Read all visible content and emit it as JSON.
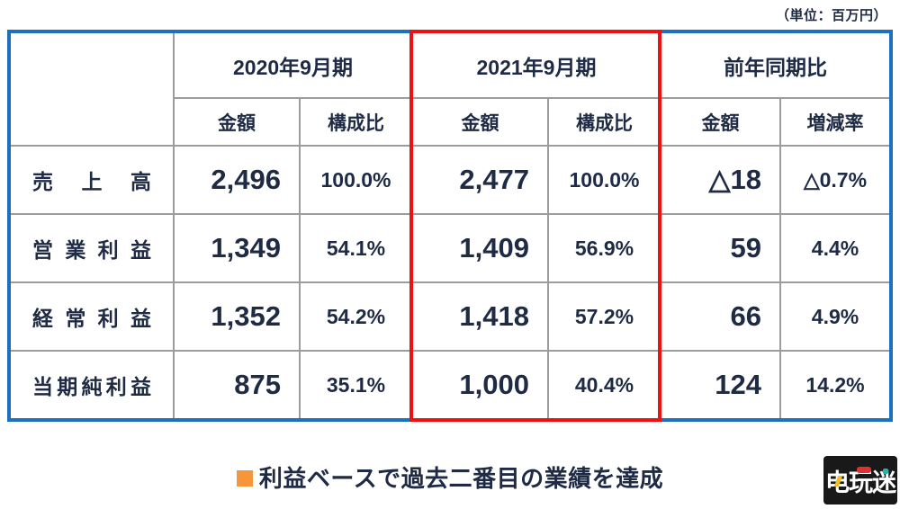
{
  "unit_note": "（単位：百万円）",
  "table": {
    "groups": [
      {
        "label": "2020年9月期"
      },
      {
        "label": "2021年9月期",
        "highlighted": true
      },
      {
        "label": "前年同期比"
      }
    ],
    "subheaders": [
      "金額",
      "構成比",
      "金額",
      "構成比",
      "金額",
      "増減率"
    ],
    "rows": [
      {
        "label": "売上高",
        "fy2020_amount": "2,496",
        "fy2020_ratio": "100.0%",
        "fy2021_amount": "2,477",
        "fy2021_ratio": "100.0%",
        "yoy_amount": "△18",
        "yoy_rate": "△0.7%"
      },
      {
        "label": "営業利益",
        "fy2020_amount": "1,349",
        "fy2020_ratio": "54.1%",
        "fy2021_amount": "1,409",
        "fy2021_ratio": "56.9%",
        "yoy_amount": "59",
        "yoy_rate": "4.4%"
      },
      {
        "label": "経常利益",
        "fy2020_amount": "1,352",
        "fy2020_ratio": "54.2%",
        "fy2021_amount": "1,418",
        "fy2021_ratio": "57.2%",
        "yoy_amount": "66",
        "yoy_rate": "4.9%"
      },
      {
        "label": "当期純利益",
        "fy2020_amount": "875",
        "fy2020_ratio": "35.1%",
        "fy2021_amount": "1,000",
        "fy2021_ratio": "40.4%",
        "yoy_amount": "124",
        "yoy_rate": "14.2%"
      }
    ]
  },
  "highlight": {
    "text": "利益ベースで過去二番目の業績を達成"
  },
  "watermark": {
    "text": "电玩迷"
  },
  "colors": {
    "text_navy": "#1f2a44",
    "table_border_blue": "#1e6fbd",
    "highlight_frame_red": "#ee1111",
    "gridline_gray": "#9c9c9c",
    "bullet_orange": "#f6953a"
  }
}
